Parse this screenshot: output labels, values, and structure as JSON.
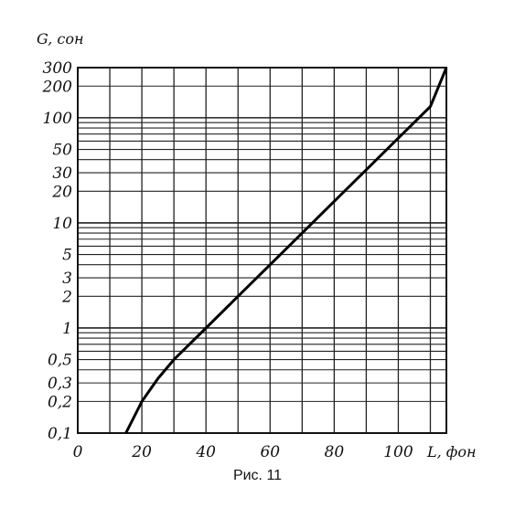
{
  "chart_data": {
    "type": "line",
    "title": "",
    "xlabel": "L, фон",
    "ylabel": "G, сон",
    "x_ticks": [
      {
        "value": 0,
        "label": "0"
      },
      {
        "value": 20,
        "label": "20"
      },
      {
        "value": 40,
        "label": "40"
      },
      {
        "value": 60,
        "label": "60"
      },
      {
        "value": 80,
        "label": "80"
      },
      {
        "value": 100,
        "label": "100"
      }
    ],
    "y_ticks": [
      {
        "value": 0.1,
        "label": "0,1"
      },
      {
        "value": 0.2,
        "label": "0,2"
      },
      {
        "value": 0.3,
        "label": "0,3"
      },
      {
        "value": 0.5,
        "label": "0,5"
      },
      {
        "value": 1,
        "label": "1"
      },
      {
        "value": 2,
        "label": "2"
      },
      {
        "value": 3,
        "label": "3"
      },
      {
        "value": 5,
        "label": "5"
      },
      {
        "value": 10,
        "label": "10"
      },
      {
        "value": 20,
        "label": "20"
      },
      {
        "value": 30,
        "label": "30"
      },
      {
        "value": 50,
        "label": "50"
      },
      {
        "value": 100,
        "label": "100"
      },
      {
        "value": 200,
        "label": "200"
      },
      {
        "value": 300,
        "label": "300"
      }
    ],
    "xlim": [
      0,
      115
    ],
    "ylim": [
      0.1,
      300
    ],
    "y_scale": "log",
    "grid": true,
    "series": [
      {
        "points": [
          [
            15,
            0.1
          ],
          [
            20,
            0.2
          ],
          [
            25,
            0.33
          ],
          [
            30,
            0.5
          ],
          [
            40,
            1
          ],
          [
            50,
            2
          ],
          [
            60,
            4
          ],
          [
            70,
            8
          ],
          [
            80,
            16
          ],
          [
            90,
            32
          ],
          [
            100,
            64
          ],
          [
            110,
            128
          ],
          [
            115,
            300
          ]
        ]
      }
    ]
  },
  "caption": "Рис. 11"
}
